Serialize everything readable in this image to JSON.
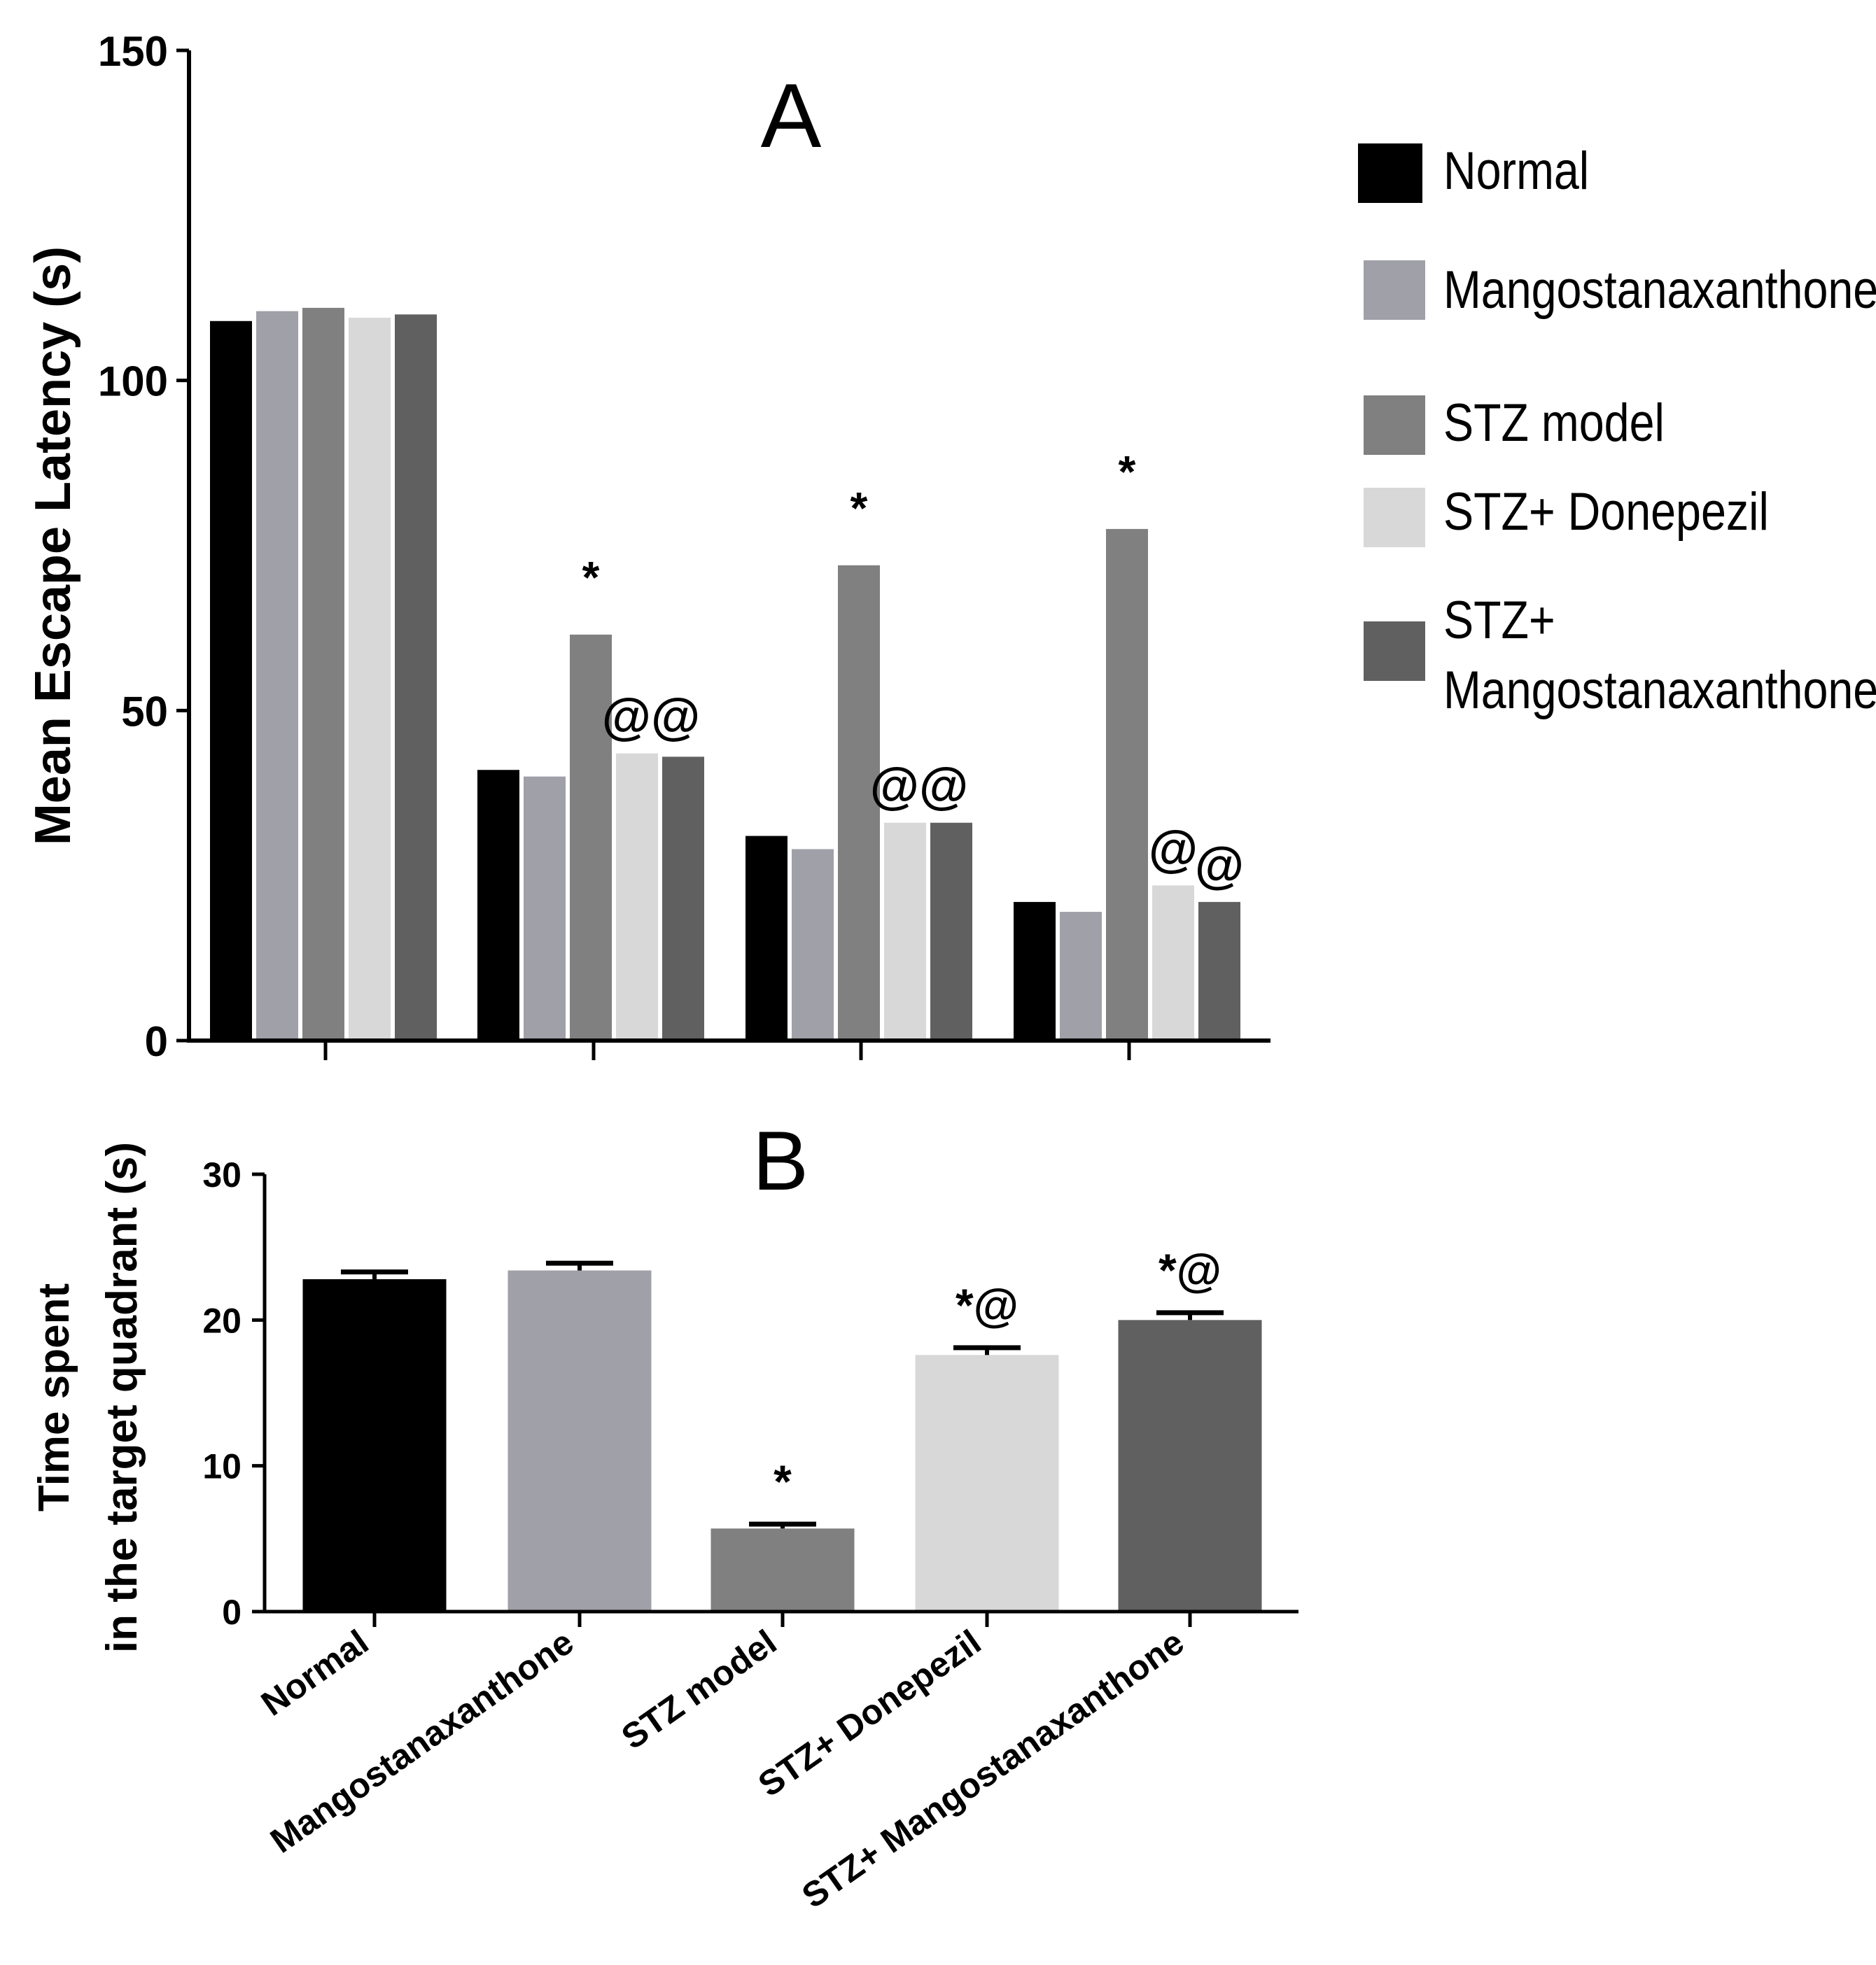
{
  "chart_data": [
    {
      "id": "A",
      "type": "bar",
      "panel_label": "A",
      "title": "",
      "xlabel": "",
      "ylabel": "Mean Escape Latency (s)",
      "ylim": [
        0,
        150
      ],
      "yticks": [
        "0",
        "50",
        "100",
        "150"
      ],
      "categories": [
        "",
        "",
        "",
        ""
      ],
      "series": [
        {
          "name": "Normal",
          "color": "#000000",
          "values": [
            109,
            41,
            31,
            21
          ]
        },
        {
          "name": "Mangostanaxanthone",
          "color": "#a0a0a8",
          "values": [
            110.5,
            40,
            29,
            19.5
          ]
        },
        {
          "name": "STZ model",
          "color": "#808080",
          "values": [
            111,
            61.5,
            72,
            77.5
          ]
        },
        {
          "name": "STZ+ Donepezil",
          "color": "#d8d8d8",
          "values": [
            109.5,
            43.5,
            33,
            23.5
          ]
        },
        {
          "name": "STZ+ Mangostanaxanthone",
          "color": "#606060",
          "values": [
            110,
            43,
            33,
            21
          ]
        }
      ],
      "annotations": [
        {
          "group": 1,
          "series": 2,
          "text": "*"
        },
        {
          "group": 1,
          "series": 3,
          "text": "@@"
        },
        {
          "group": 2,
          "series": 2,
          "text": "*"
        },
        {
          "group": 2,
          "series": 3,
          "text": "@@"
        },
        {
          "group": 3,
          "series": 2,
          "text": "*"
        },
        {
          "group": 3,
          "series": 3,
          "text": "@"
        },
        {
          "group": 3,
          "series": 4,
          "text": "@"
        }
      ]
    },
    {
      "id": "B",
      "type": "bar",
      "panel_label": "B",
      "title": "",
      "xlabel": "",
      "ylabel_lines": [
        "Time spent",
        "in the target quadrant (s)"
      ],
      "ylim": [
        0,
        30
      ],
      "yticks": [
        "0",
        "10",
        "20",
        "30"
      ],
      "categories": [
        "Normal",
        "Mangostanaxanthone",
        "STZ model",
        "STZ+ Donepezil",
        "STZ+ Mangostanaxanthone"
      ],
      "values": [
        22.8,
        23.4,
        5.7,
        17.6,
        20.0
      ],
      "errors": [
        0.5,
        0.5,
        0.3,
        0.5,
        0.5
      ],
      "colors": [
        "#000000",
        "#a0a0a8",
        "#808080",
        "#d8d8d8",
        "#606060"
      ],
      "annotations": [
        "",
        "",
        "*",
        "*@",
        "*@"
      ]
    }
  ],
  "legend": [
    {
      "lines": [
        "Normal"
      ],
      "color": "#000000"
    },
    {
      "lines": [
        "Mangostanaxanthone"
      ],
      "color": "#a0a0a8"
    },
    {
      "lines": [
        "STZ model"
      ],
      "color": "#808080"
    },
    {
      "lines": [
        "STZ+ Donepezil"
      ],
      "color": "#d8d8d8"
    },
    {
      "lines": [
        "STZ+",
        "Mangostanaxanthone"
      ],
      "color": "#606060"
    }
  ]
}
